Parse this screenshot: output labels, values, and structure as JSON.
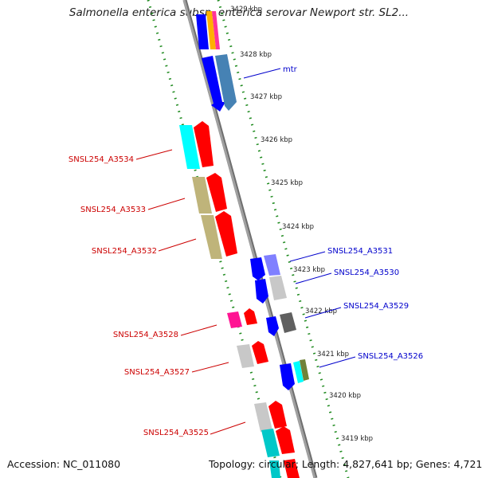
{
  "title": "Salmonella enterica subsp. enterica serovar Newport str. SL2...",
  "accession": "Accession: NC_011080",
  "topology": "Topology: circular; Length: 4,827,641 bp; Genes: 4,721",
  "ticks": [
    "3429 kbp",
    "3428 kbp",
    "3427 kbp",
    "3426 kbp",
    "3425 kbp",
    "3424 kbp",
    "3423 kbp",
    "3422 kbp",
    "3421 kbp",
    "3420 kbp",
    "3419 kbp"
  ],
  "genes": [
    {
      "name": "mtr",
      "strand": "forward",
      "color": "#0000cc"
    },
    {
      "name": "SNSL254_A3534",
      "strand": "reverse",
      "color": "#cc0000"
    },
    {
      "name": "SNSL254_A3533",
      "strand": "reverse",
      "color": "#cc0000"
    },
    {
      "name": "SNSL254_A3532",
      "strand": "reverse",
      "color": "#cc0000"
    },
    {
      "name": "SNSL254_A3531",
      "strand": "forward",
      "color": "#0000cc"
    },
    {
      "name": "SNSL254_A3530",
      "strand": "forward",
      "color": "#0000cc"
    },
    {
      "name": "SNSL254_A3529",
      "strand": "forward",
      "color": "#0000cc"
    },
    {
      "name": "SNSL254_A3528",
      "strand": "reverse",
      "color": "#cc0000"
    },
    {
      "name": "SNSL254_A3527",
      "strand": "reverse",
      "color": "#cc0000"
    },
    {
      "name": "SNSL254_A3526",
      "strand": "forward",
      "color": "#0000cc"
    },
    {
      "name": "SNSL254_A3525",
      "strand": "reverse",
      "color": "#cc0000"
    }
  ],
  "colors": {
    "forward_cds": "#0000ff",
    "reverse_cds": "#ff0000",
    "backbone": "#8a8a8a",
    "dotted_track": "#1e8a1e"
  }
}
